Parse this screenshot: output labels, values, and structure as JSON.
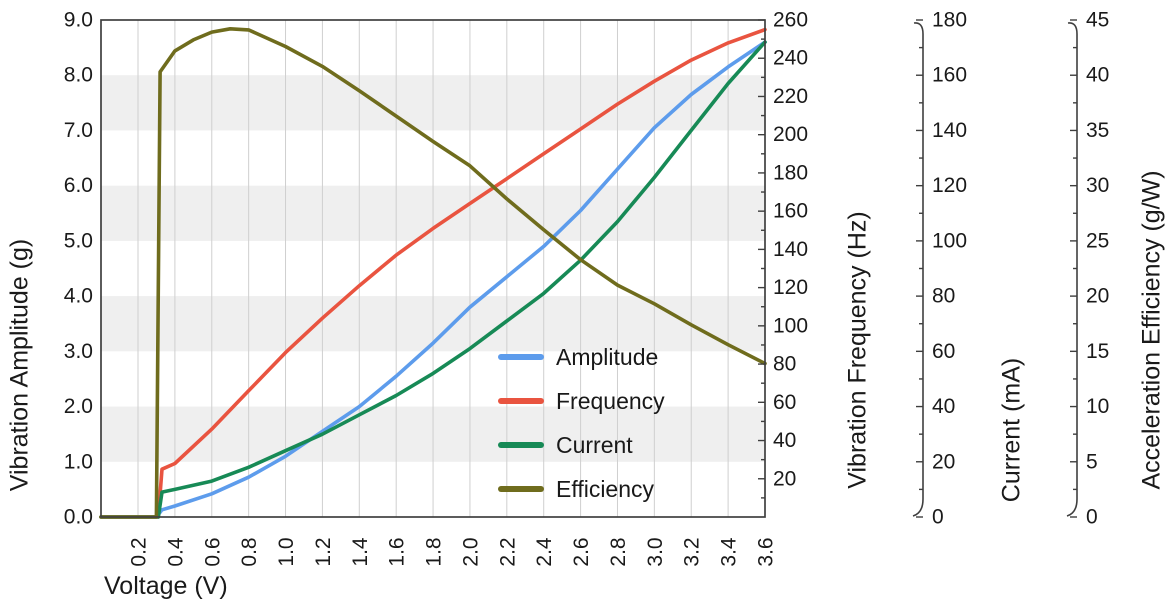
{
  "chart_data": {
    "type": "line",
    "title": "",
    "xlabel": "Voltage (V)",
    "x_range": [
      0.2,
      3.6
    ],
    "x_tick_labels": [
      "0.2",
      "0.4",
      "0.6",
      "0.8",
      "1.0",
      "1.2",
      "1.4",
      "1.6",
      "1.8",
      "2.0",
      "2.2",
      "2.4",
      "2.6",
      "2.8",
      "3.0",
      "3.2",
      "3.4",
      "3.6"
    ],
    "grid": "vertical-gridlines-with-horizontal-gray-bands",
    "band_color": "#efefef",
    "gridline_color": "#cfcfcf",
    "spine_color": "#3f3f3f",
    "legend_position": "inside-lower-right",
    "axes": {
      "amplitude": {
        "title": "Vibration Amplitude (g)",
        "range": [
          0,
          9
        ],
        "tick_labels": [
          "0.0",
          "1.0",
          "2.0",
          "3.0",
          "4.0",
          "5.0",
          "6.0",
          "7.0",
          "8.0",
          "9.0"
        ],
        "side": "left"
      },
      "frequency": {
        "title": "Vibration Frequency (Hz)",
        "range": [
          0,
          260
        ],
        "tick_step": 20,
        "minor_step": 10,
        "first_label": 20,
        "side": "right-attached"
      },
      "current": {
        "title": "Current (mA)",
        "range": [
          0,
          180
        ],
        "tick_step": 20,
        "minor_step": 10,
        "first_label": 0,
        "side": "right-detached-1"
      },
      "efficiency": {
        "title": "Acceleration Efficiency (g/W)",
        "range": [
          0,
          45
        ],
        "tick_step": 5,
        "minor_step": 2.5,
        "first_label": 0,
        "side": "right-detached-2"
      }
    },
    "series": [
      {
        "label": "Amplitude",
        "axis": "amplitude",
        "color": "#5d9cec",
        "points": [
          [
            0.2,
            0
          ],
          [
            0.3,
            0
          ],
          [
            0.33,
            0.13
          ],
          [
            0.4,
            0.2
          ],
          [
            0.6,
            0.42
          ],
          [
            0.8,
            0.72
          ],
          [
            1.0,
            1.1
          ],
          [
            1.2,
            1.55
          ],
          [
            1.4,
            2.0
          ],
          [
            1.6,
            2.55
          ],
          [
            1.8,
            3.15
          ],
          [
            2.0,
            3.8
          ],
          [
            2.2,
            4.35
          ],
          [
            2.4,
            4.9
          ],
          [
            2.6,
            5.55
          ],
          [
            2.8,
            6.3
          ],
          [
            3.0,
            7.05
          ],
          [
            3.2,
            7.65
          ],
          [
            3.4,
            8.15
          ],
          [
            3.6,
            8.6
          ]
        ]
      },
      {
        "label": "Frequency",
        "axis": "frequency",
        "color": "#e95440",
        "points": [
          [
            0.2,
            0
          ],
          [
            0.31,
            0
          ],
          [
            0.33,
            25
          ],
          [
            0.4,
            28
          ],
          [
            0.6,
            46
          ],
          [
            0.8,
            66
          ],
          [
            1.0,
            86
          ],
          [
            1.2,
            104
          ],
          [
            1.4,
            121
          ],
          [
            1.6,
            137
          ],
          [
            1.8,
            151
          ],
          [
            2.0,
            164
          ],
          [
            2.2,
            177
          ],
          [
            2.4,
            190
          ],
          [
            2.6,
            203
          ],
          [
            2.8,
            216
          ],
          [
            3.0,
            228
          ],
          [
            3.2,
            239
          ],
          [
            3.4,
            248
          ],
          [
            3.6,
            255
          ]
        ]
      },
      {
        "label": "Current",
        "axis": "current",
        "color": "#178a56",
        "points": [
          [
            0.2,
            0
          ],
          [
            0.31,
            0
          ],
          [
            0.33,
            9
          ],
          [
            0.4,
            10
          ],
          [
            0.6,
            13
          ],
          [
            0.8,
            18
          ],
          [
            1.0,
            24
          ],
          [
            1.2,
            30
          ],
          [
            1.4,
            37
          ],
          [
            1.6,
            44
          ],
          [
            1.8,
            52
          ],
          [
            2.0,
            61
          ],
          [
            2.2,
            71
          ],
          [
            2.4,
            81
          ],
          [
            2.6,
            93
          ],
          [
            2.8,
            107
          ],
          [
            3.0,
            123
          ],
          [
            3.2,
            140
          ],
          [
            3.4,
            157
          ],
          [
            3.6,
            172
          ]
        ]
      },
      {
        "label": "Efficiency",
        "axis": "efficiency",
        "color": "#6f6c1d",
        "points": [
          [
            0.2,
            0
          ],
          [
            0.3,
            0
          ],
          [
            0.32,
            40.3
          ],
          [
            0.4,
            42.2
          ],
          [
            0.5,
            43.2
          ],
          [
            0.6,
            43.9
          ],
          [
            0.7,
            44.2
          ],
          [
            0.8,
            44.1
          ],
          [
            1.0,
            42.6
          ],
          [
            1.2,
            40.8
          ],
          [
            1.4,
            38.6
          ],
          [
            1.6,
            36.3
          ],
          [
            1.8,
            34.0
          ],
          [
            2.0,
            31.8
          ],
          [
            2.2,
            28.8
          ],
          [
            2.4,
            26.0
          ],
          [
            2.6,
            23.3
          ],
          [
            2.8,
            21.0
          ],
          [
            3.0,
            19.3
          ],
          [
            3.2,
            17.4
          ],
          [
            3.4,
            15.6
          ],
          [
            3.6,
            13.9
          ]
        ]
      }
    ]
  }
}
